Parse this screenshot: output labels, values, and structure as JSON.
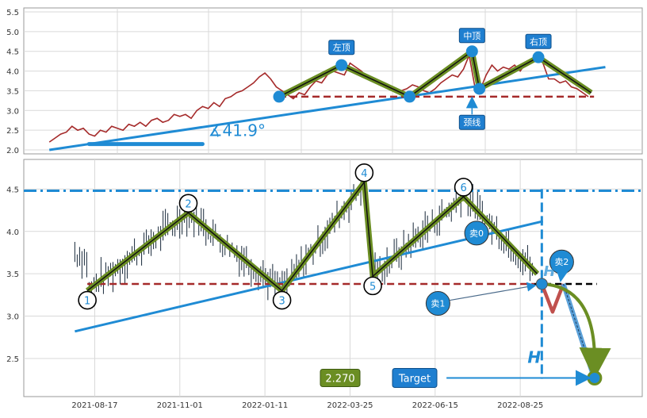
{
  "colors": {
    "grid": "#d9d9d9",
    "axis": "#999999",
    "price_line": "#a52a2a",
    "pattern_outer": "#6b8e23",
    "pattern_inner": "#111111",
    "trend_blue": "#1f8bd4",
    "support_red": "#a52a2a",
    "marker_blue": "#1f8bd4",
    "label_box": "#1f7fd0",
    "label_text": "#ffffff",
    "candle": "#2b3a4a",
    "target_box": "#1f7fd0",
    "value_box": "#6b8e23",
    "neg_leg": "#c0504d",
    "proj_leg": "#5aa0d8"
  },
  "chart_data": [
    {
      "type": "line",
      "panel": "top",
      "ylim": [
        1.9,
        5.6
      ],
      "yticks": [
        "2.0",
        "2.5",
        "3.0",
        "3.5",
        "4.0",
        "4.5",
        "5.0",
        "5.5"
      ],
      "yticks_values": [
        2.0,
        2.5,
        3.0,
        3.5,
        4.0,
        4.5,
        5.0,
        5.5
      ],
      "xlim": [
        0,
        100
      ],
      "grid": true,
      "series": [
        {
          "role": "price",
          "x": [
            0,
            1,
            2,
            3,
            4,
            5,
            6,
            7,
            8,
            9,
            10,
            11,
            12,
            13,
            14,
            15,
            16,
            17,
            18,
            19,
            20,
            21,
            22,
            23,
            24,
            25,
            26,
            27,
            28,
            29,
            30,
            31,
            32,
            33,
            34,
            35,
            36,
            37,
            38,
            39,
            40,
            41,
            42,
            43,
            44,
            45,
            46,
            47,
            48,
            49,
            50,
            51,
            52,
            53,
            54,
            55,
            56,
            57,
            58,
            59,
            60,
            61,
            62,
            63,
            64,
            65,
            66,
            67,
            68,
            69,
            70,
            71,
            72,
            73,
            74,
            75,
            76,
            77,
            78,
            79,
            80,
            81,
            82,
            83,
            84,
            85,
            86,
            87,
            88,
            89,
            90,
            91,
            92,
            93,
            94,
            95
          ],
          "y": [
            2.2,
            2.3,
            2.4,
            2.45,
            2.6,
            2.5,
            2.55,
            2.4,
            2.35,
            2.5,
            2.45,
            2.6,
            2.55,
            2.5,
            2.65,
            2.6,
            2.7,
            2.6,
            2.75,
            2.8,
            2.7,
            2.75,
            2.9,
            2.85,
            2.9,
            2.8,
            3.0,
            3.1,
            3.05,
            3.2,
            3.1,
            3.3,
            3.35,
            3.45,
            3.5,
            3.6,
            3.7,
            3.85,
            3.95,
            3.8,
            3.6,
            3.5,
            3.4,
            3.3,
            3.45,
            3.4,
            3.6,
            3.75,
            3.7,
            3.9,
            4.0,
            3.95,
            3.9,
            4.2,
            4.1,
            4.0,
            3.85,
            3.8,
            3.7,
            3.6,
            3.6,
            3.55,
            3.5,
            3.55,
            3.65,
            3.6,
            3.5,
            3.45,
            3.55,
            3.7,
            3.8,
            3.9,
            3.85,
            4.05,
            4.4,
            3.6,
            3.55,
            3.9,
            4.15,
            4.0,
            4.1,
            4.05,
            4.15,
            4.0,
            4.2,
            4.3,
            4.35,
            4.2,
            3.8,
            3.8,
            3.7,
            3.75,
            3.6,
            3.55,
            3.45,
            3.35
          ]
        },
        {
          "role": "pattern",
          "points": [
            {
              "x": 40.5,
              "y": 3.35
            },
            {
              "x": 51.5,
              "y": 4.15
            },
            {
              "x": 63.5,
              "y": 3.35
            },
            {
              "x": 74.5,
              "y": 4.5
            },
            {
              "x": 75.8,
              "y": 3.55
            },
            {
              "x": 86.2,
              "y": 4.35
            },
            {
              "x": 95.5,
              "y": 3.45
            }
          ]
        },
        {
          "role": "trend",
          "x": [
            0,
            98
          ],
          "y": [
            2.0,
            4.1
          ]
        },
        {
          "role": "neckline",
          "x": [
            40.5,
            96
          ],
          "y": [
            3.35,
            3.35
          ]
        },
        {
          "role": "angle-bar",
          "x": [
            7,
            27
          ],
          "y": [
            2.15,
            2.15
          ]
        }
      ],
      "annotations": [
        {
          "text": "左顶",
          "x": 51.5,
          "y": 4.6
        },
        {
          "text": "中顶",
          "x": 74.5,
          "y": 4.9
        },
        {
          "text": "右顶",
          "x": 86.2,
          "y": 4.75
        },
        {
          "text": "颈线",
          "x": 74.5,
          "y": 2.7
        },
        {
          "text": "∡41.9°",
          "x": 28,
          "y": 2.35
        }
      ]
    },
    {
      "type": "line",
      "panel": "bottom",
      "ylim": [
        2.05,
        4.85
      ],
      "yticks": [
        "2.5",
        "3.0",
        "3.5",
        "4.0",
        "4.5"
      ],
      "yticks_values": [
        2.5,
        3.0,
        3.5,
        4.0,
        4.5
      ],
      "xlim": [
        0,
        100
      ],
      "xtick_labels": [
        "2021-08-17",
        "2021-11-01",
        "2022-01-11",
        "2022-03-25",
        "2022-06-15",
        "2022-08-25"
      ],
      "xtick_x": [
        8,
        23,
        38,
        53,
        68,
        83
      ],
      "grid": true,
      "series": [
        {
          "role": "wave",
          "points": [
            {
              "label": "1",
              "x": 6.7,
              "y": 3.3
            },
            {
              "label": "2",
              "x": 24.5,
              "y": 4.22
            },
            {
              "label": "3",
              "x": 41.0,
              "y": 3.3
            },
            {
              "label": "4",
              "x": 55.5,
              "y": 4.58
            },
            {
              "label": "5",
              "x": 57.0,
              "y": 3.47
            },
            {
              "label": "6",
              "x": 73.0,
              "y": 4.41
            },
            {
              "label": "",
              "x": 86.0,
              "y": 3.5
            }
          ]
        },
        {
          "role": "trend",
          "x": [
            4.5,
            87
          ],
          "y": [
            2.82,
            4.12
          ]
        },
        {
          "role": "resistance",
          "x": [
            0,
            100
          ],
          "y": [
            4.48,
            4.48
          ]
        },
        {
          "role": "neckline",
          "x": [
            6.7,
            85.5
          ],
          "y": [
            3.38,
            3.38
          ]
        },
        {
          "role": "neckline-ext",
          "x": [
            85.5,
            96.5
          ],
          "y": [
            3.38,
            3.38
          ]
        },
        {
          "role": "vertical",
          "x": [
            86.8,
            86.8
          ],
          "y": [
            4.5,
            2.26
          ]
        },
        {
          "role": "target-arrow",
          "x": [
            70,
            96
          ],
          "y": [
            2.27,
            2.27
          ]
        }
      ],
      "markers": [
        {
          "text": "卖0",
          "x": 75.3,
          "y": 3.98
        },
        {
          "text": "卖1",
          "x": 68.5,
          "y": 3.15
        },
        {
          "text": "卖2",
          "x": 90.3,
          "y": 3.64
        }
      ],
      "labels": {
        "value": "2.270",
        "target": "Target",
        "height": "H"
      },
      "target_y": 2.27
    }
  ]
}
